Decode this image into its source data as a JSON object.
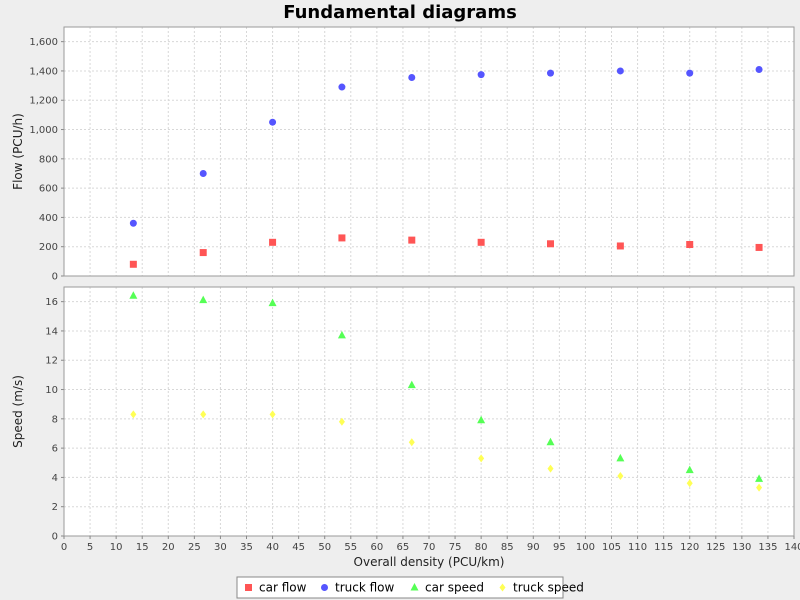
{
  "chart_data": {
    "title": "Fundamental diagrams",
    "type": "scatter",
    "xlabel": "Overall density (PCU/km)",
    "xlim": [
      0,
      140
    ],
    "xticks": [
      0,
      5,
      10,
      15,
      20,
      25,
      30,
      35,
      40,
      45,
      50,
      55,
      60,
      65,
      70,
      75,
      80,
      85,
      90,
      95,
      100,
      105,
      110,
      115,
      120,
      125,
      130,
      135,
      140
    ],
    "grid": true,
    "legend_position": "bottom-center",
    "panels": [
      {
        "ylabel": "Flow (PCU/h)",
        "ylim": [
          0,
          1700
        ],
        "yticks": [
          0,
          200,
          400,
          600,
          800,
          1000,
          1200,
          1400,
          1600
        ],
        "ytick_labels": [
          "0",
          "200",
          "400",
          "600",
          "800",
          "1,000",
          "1,200",
          "1,400",
          "1,600"
        ],
        "series": [
          {
            "name": "car flow",
            "marker": "square",
            "color": "#ff5555",
            "x": [
              13.3,
              26.7,
              40,
              53.3,
              66.7,
              80,
              93.3,
              106.7,
              120,
              133.3
            ],
            "y": [
              80,
              160,
              230,
              260,
              245,
              230,
              220,
              205,
              215,
              195
            ]
          },
          {
            "name": "truck flow",
            "marker": "circle",
            "color": "#5555ff",
            "x": [
              13.3,
              26.7,
              40,
              53.3,
              66.7,
              80,
              93.3,
              106.7,
              120,
              133.3
            ],
            "y": [
              360,
              700,
              1050,
              1290,
              1355,
              1375,
              1385,
              1400,
              1385,
              1410
            ]
          }
        ]
      },
      {
        "ylabel": "Speed (m/s)",
        "ylim": [
          0,
          17
        ],
        "yticks": [
          0,
          2,
          4,
          6,
          8,
          10,
          12,
          14,
          16
        ],
        "ytick_labels": [
          "0",
          "2",
          "4",
          "6",
          "8",
          "10",
          "12",
          "14",
          "16"
        ],
        "series": [
          {
            "name": "car speed",
            "marker": "triangle",
            "color": "#55ff55",
            "x": [
              13.3,
              26.7,
              40,
              53.3,
              66.7,
              80,
              93.3,
              106.7,
              120,
              133.3
            ],
            "y": [
              16.4,
              16.1,
              15.9,
              13.7,
              10.3,
              7.9,
              6.4,
              5.3,
              4.5,
              3.9
            ]
          },
          {
            "name": "truck speed",
            "marker": "diamond",
            "color": "#ffff55",
            "x": [
              13.3,
              26.7,
              40,
              53.3,
              66.7,
              80,
              93.3,
              106.7,
              120,
              133.3
            ],
            "y": [
              8.3,
              8.3,
              8.3,
              7.8,
              6.4,
              5.3,
              4.6,
              4.1,
              3.6,
              3.3
            ]
          }
        ]
      }
    ],
    "legend": [
      "car flow",
      "truck flow",
      "car speed",
      "truck speed"
    ]
  }
}
